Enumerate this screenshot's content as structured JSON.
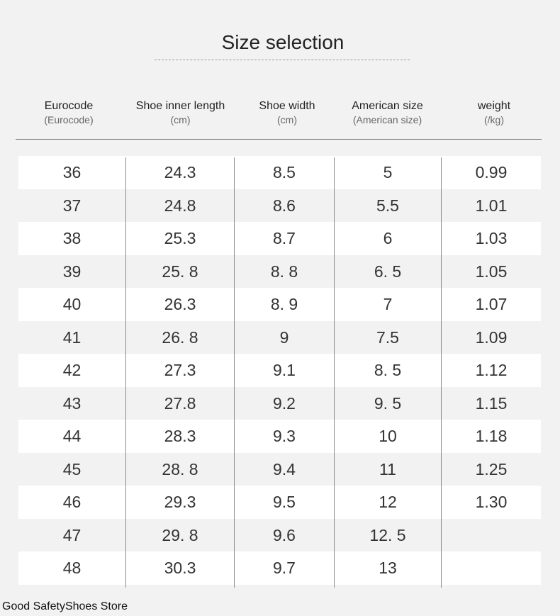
{
  "title": "Size selection",
  "store": "Good SafetyShoes Store",
  "columns": [
    {
      "label": "Eurocode",
      "sub": "(Eurocode)"
    },
    {
      "label": "Shoe inner length",
      "sub": "(cm)"
    },
    {
      "label": "Shoe width",
      "sub": "(cm)"
    },
    {
      "label": "American size",
      "sub": "(American size)"
    },
    {
      "label": "weight",
      "sub": "(/kg)"
    }
  ],
  "rows": [
    [
      "36",
      "24.3",
      "8.5",
      "5",
      "0.99"
    ],
    [
      "37",
      "24.8",
      "8.6",
      "5.5",
      "1.01"
    ],
    [
      "38",
      "25.3",
      "8.7",
      "6",
      "1.03"
    ],
    [
      "39",
      "25. 8",
      "8. 8",
      "6. 5",
      "1.05"
    ],
    [
      "40",
      "26.3",
      "8. 9",
      "7",
      "1.07"
    ],
    [
      "41",
      "26. 8",
      "9",
      "7.5",
      "1.09"
    ],
    [
      "42",
      "27.3",
      "9.1",
      "8. 5",
      "1.12"
    ],
    [
      "43",
      "27.8",
      "9.2",
      "9. 5",
      "1.15"
    ],
    [
      "44",
      "28.3",
      "9.3",
      "10",
      "1.18"
    ],
    [
      "45",
      "28. 8",
      "9.4",
      "11",
      "1.25"
    ],
    [
      "46",
      "29.3",
      "9.5",
      "12",
      "1.30"
    ],
    [
      "47",
      "29. 8",
      "9.6",
      "12. 5",
      ""
    ],
    [
      "48",
      "30.3",
      "9.7",
      "13",
      ""
    ]
  ]
}
